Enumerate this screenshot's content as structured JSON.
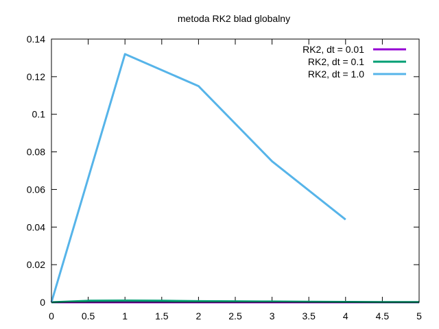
{
  "chart_data": {
    "type": "line",
    "title": "metoda  RK2 blad globalny",
    "xlabel": "",
    "ylabel": "",
    "xlim": [
      0,
      5
    ],
    "ylim": [
      0,
      0.14
    ],
    "xticks": [
      "0",
      "0.5",
      "1",
      "1.5",
      "2",
      "2.5",
      "3",
      "3.5",
      "4",
      "4.5",
      "5"
    ],
    "yticks": [
      "0",
      "0.02",
      "0.04",
      "0.06",
      "0.08",
      "0.1",
      "0.12",
      "0.14"
    ],
    "grid": false,
    "legend_position": "top-right",
    "series": [
      {
        "name": "RK2, dt = 0.01",
        "color": "#9400d3",
        "x": [
          0,
          1,
          2,
          3,
          4,
          5
        ],
        "y": [
          0,
          1e-05,
          1e-05,
          1e-05,
          1e-05,
          1e-05
        ]
      },
      {
        "name": "RK2, dt = 0.1",
        "color": "#009e73",
        "x": [
          0,
          0.5,
          1,
          1.5,
          2,
          2.5,
          3,
          3.5,
          4,
          4.5,
          5
        ],
        "y": [
          0,
          0.0008,
          0.0009,
          0.0008,
          0.0006,
          0.0005,
          0.0004,
          0.0003,
          0.0002,
          0.0001,
          0.0001
        ]
      },
      {
        "name": "RK2, dt = 1.0",
        "color": "#56b4e9",
        "x": [
          0,
          1,
          2,
          3,
          4
        ],
        "y": [
          0,
          0.132,
          0.115,
          0.075,
          0.044
        ]
      }
    ]
  }
}
